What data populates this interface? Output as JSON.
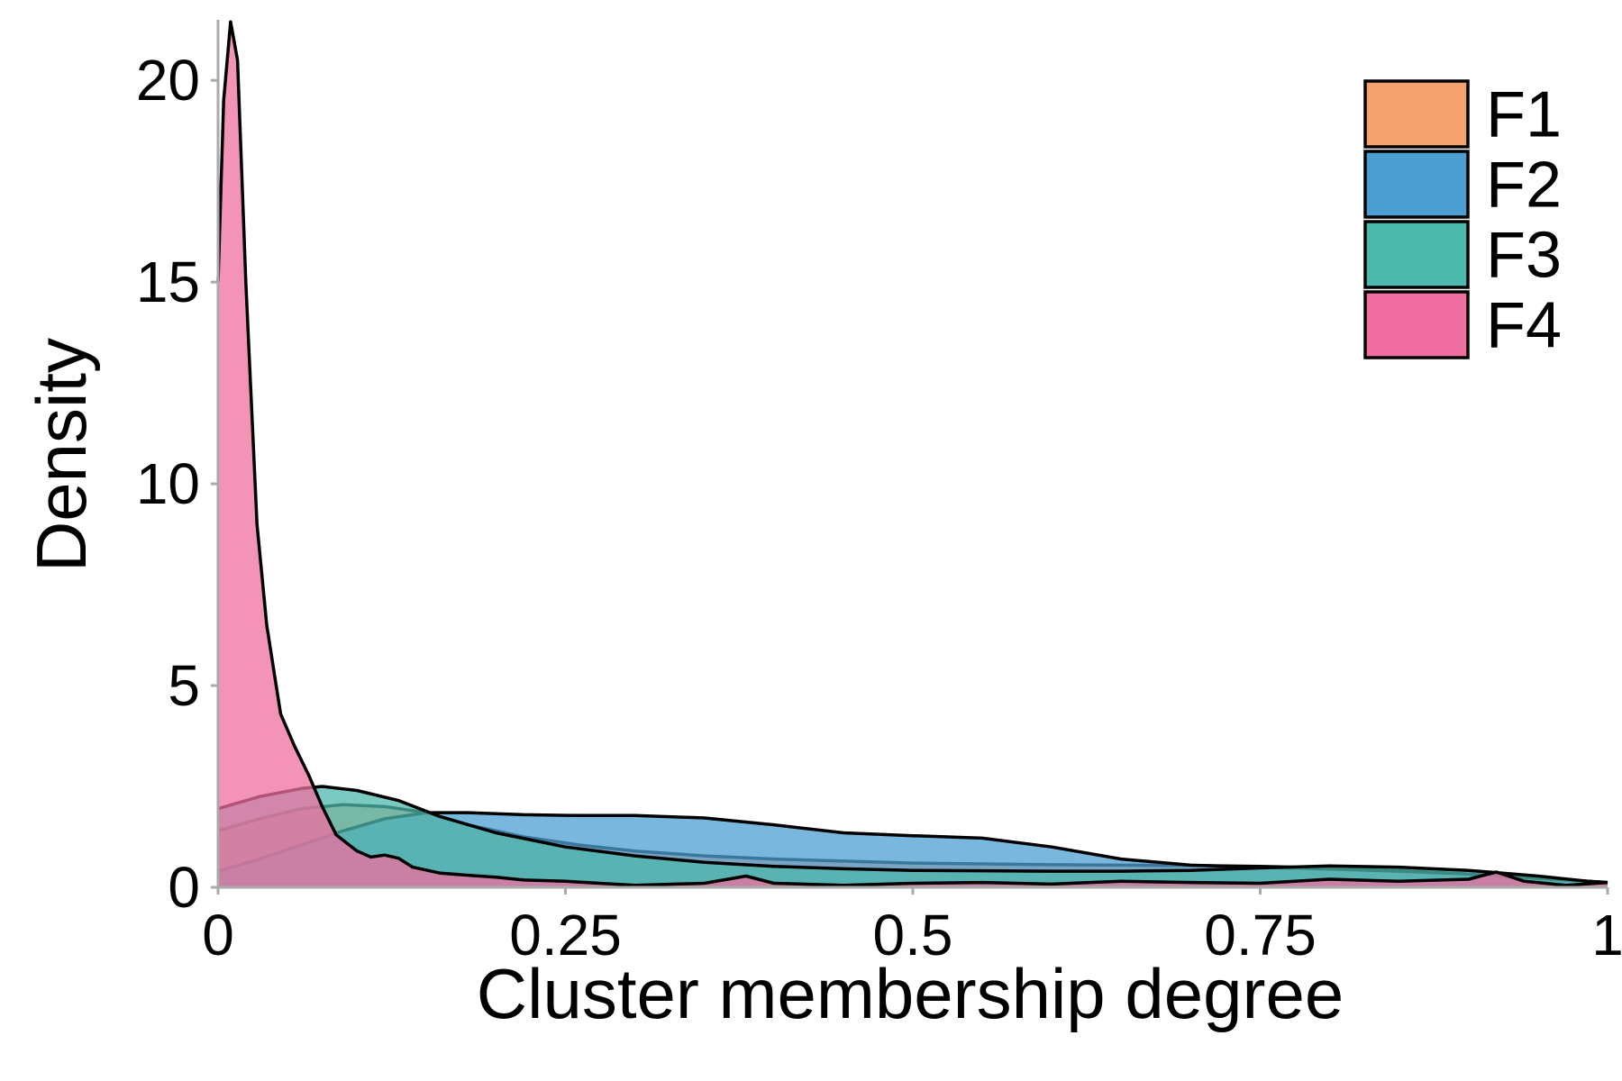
{
  "chart_data": {
    "type": "area",
    "xlabel": "Cluster membership degree",
    "ylabel": "Density",
    "xlim": [
      0,
      1
    ],
    "ylim": [
      0,
      21.5
    ],
    "x_ticks": [
      0,
      0.25,
      0.5,
      0.75,
      1
    ],
    "x_tick_labels": [
      "0",
      "0.25",
      "0.5",
      "0.75",
      "1"
    ],
    "y_ticks": [
      0,
      5,
      10,
      15,
      20
    ],
    "y_tick_labels": [
      "0",
      "5",
      "10",
      "15",
      "20"
    ],
    "grid": false,
    "legend_position": "top-right",
    "series": [
      {
        "name": "F1",
        "color": "#F4A26F",
        "points": [
          [
            0,
            1.4
          ],
          [
            0.03,
            1.7
          ],
          [
            0.06,
            1.95
          ],
          [
            0.09,
            2.05
          ],
          [
            0.12,
            2.0
          ],
          [
            0.15,
            1.85
          ],
          [
            0.18,
            1.55
          ],
          [
            0.22,
            1.25
          ],
          [
            0.26,
            1.05
          ],
          [
            0.3,
            0.9
          ],
          [
            0.35,
            0.78
          ],
          [
            0.4,
            0.7
          ],
          [
            0.45,
            0.65
          ],
          [
            0.5,
            0.6
          ],
          [
            0.55,
            0.58
          ],
          [
            0.6,
            0.56
          ],
          [
            0.65,
            0.55
          ],
          [
            0.7,
            0.54
          ],
          [
            0.75,
            0.52
          ],
          [
            0.8,
            0.48
          ],
          [
            0.85,
            0.42
          ],
          [
            0.9,
            0.33
          ],
          [
            0.95,
            0.22
          ],
          [
            1,
            0.12
          ]
        ]
      },
      {
        "name": "F2",
        "color": "#4E9FD1",
        "points": [
          [
            0,
            0.4
          ],
          [
            0.03,
            0.7
          ],
          [
            0.06,
            1.05
          ],
          [
            0.09,
            1.4
          ],
          [
            0.12,
            1.7
          ],
          [
            0.15,
            1.85
          ],
          [
            0.18,
            1.85
          ],
          [
            0.22,
            1.8
          ],
          [
            0.26,
            1.78
          ],
          [
            0.3,
            1.78
          ],
          [
            0.35,
            1.72
          ],
          [
            0.4,
            1.55
          ],
          [
            0.45,
            1.35
          ],
          [
            0.5,
            1.28
          ],
          [
            0.55,
            1.22
          ],
          [
            0.6,
            1.0
          ],
          [
            0.65,
            0.7
          ],
          [
            0.7,
            0.55
          ],
          [
            0.75,
            0.5
          ],
          [
            0.8,
            0.45
          ],
          [
            0.85,
            0.4
          ],
          [
            0.9,
            0.33
          ],
          [
            0.95,
            0.22
          ],
          [
            1,
            0.12
          ]
        ]
      },
      {
        "name": "F3",
        "color": "#4DB8AC",
        "points": [
          [
            0,
            1.95
          ],
          [
            0.03,
            2.25
          ],
          [
            0.06,
            2.45
          ],
          [
            0.075,
            2.5
          ],
          [
            0.1,
            2.4
          ],
          [
            0.13,
            2.15
          ],
          [
            0.16,
            1.75
          ],
          [
            0.2,
            1.35
          ],
          [
            0.25,
            1.0
          ],
          [
            0.3,
            0.78
          ],
          [
            0.35,
            0.62
          ],
          [
            0.4,
            0.52
          ],
          [
            0.45,
            0.46
          ],
          [
            0.5,
            0.42
          ],
          [
            0.55,
            0.41
          ],
          [
            0.6,
            0.4
          ],
          [
            0.65,
            0.4
          ],
          [
            0.7,
            0.42
          ],
          [
            0.75,
            0.48
          ],
          [
            0.8,
            0.53
          ],
          [
            0.85,
            0.5
          ],
          [
            0.9,
            0.42
          ],
          [
            0.95,
            0.28
          ],
          [
            1,
            0.1
          ]
        ]
      },
      {
        "name": "F4",
        "color": "#F06FA0",
        "points": [
          [
            0,
            15.0
          ],
          [
            0.004,
            19.5
          ],
          [
            0.009,
            21.45
          ],
          [
            0.014,
            20.5
          ],
          [
            0.02,
            15.0
          ],
          [
            0.028,
            9.0
          ],
          [
            0.035,
            6.5
          ],
          [
            0.045,
            4.3
          ],
          [
            0.055,
            3.5
          ],
          [
            0.065,
            2.8
          ],
          [
            0.075,
            2.0
          ],
          [
            0.085,
            1.3
          ],
          [
            0.1,
            0.9
          ],
          [
            0.11,
            0.75
          ],
          [
            0.12,
            0.8
          ],
          [
            0.13,
            0.72
          ],
          [
            0.14,
            0.5
          ],
          [
            0.16,
            0.35
          ],
          [
            0.18,
            0.3
          ],
          [
            0.2,
            0.25
          ],
          [
            0.22,
            0.18
          ],
          [
            0.25,
            0.15
          ],
          [
            0.3,
            0.05
          ],
          [
            0.35,
            0.1
          ],
          [
            0.38,
            0.28
          ],
          [
            0.4,
            0.1
          ],
          [
            0.45,
            0.05
          ],
          [
            0.5,
            0.1
          ],
          [
            0.55,
            0.12
          ],
          [
            0.6,
            0.08
          ],
          [
            0.65,
            0.15
          ],
          [
            0.7,
            0.12
          ],
          [
            0.75,
            0.1
          ],
          [
            0.8,
            0.2
          ],
          [
            0.85,
            0.15
          ],
          [
            0.9,
            0.2
          ],
          [
            0.92,
            0.38
          ],
          [
            0.94,
            0.15
          ],
          [
            0.97,
            0.05
          ],
          [
            1,
            0.12
          ]
        ]
      }
    ]
  }
}
